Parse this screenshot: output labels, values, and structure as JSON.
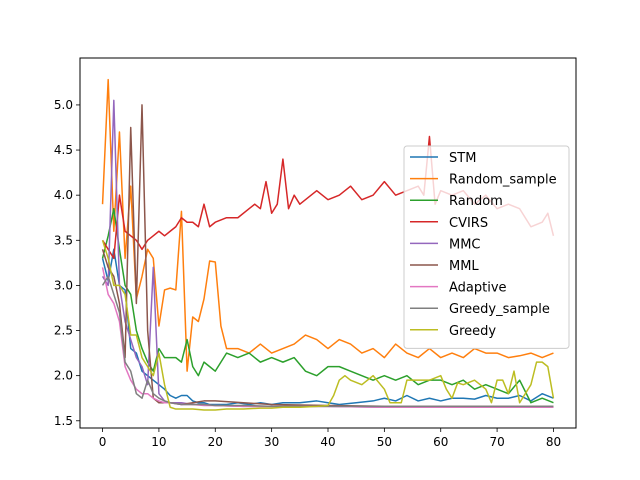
{
  "chart_data": {
    "type": "line",
    "title": "",
    "xlabel": "",
    "ylabel": "",
    "xlim": [
      -4,
      84
    ],
    "ylim": [
      1.42,
      5.52
    ],
    "x_ticks": [
      0,
      10,
      20,
      30,
      40,
      50,
      60,
      70,
      80
    ],
    "y_ticks": [
      1.5,
      2.0,
      2.5,
      3.0,
      3.5,
      4.0,
      4.5,
      5.0
    ],
    "x_tick_labels": [
      "0",
      "10",
      "20",
      "30",
      "40",
      "50",
      "60",
      "70",
      "80"
    ],
    "y_tick_labels": [
      "1.5",
      "2.0",
      "2.5",
      "3.0",
      "3.5",
      "4.0",
      "4.5",
      "5.0"
    ],
    "grid": false,
    "legend_position": "center-right",
    "series": [
      {
        "name": "STM",
        "color": "#1f77b4",
        "x": [
          0,
          1,
          2,
          3,
          4,
          5,
          6,
          7,
          8,
          9,
          10,
          11,
          12,
          13,
          14,
          15,
          16,
          17,
          18,
          19,
          20,
          22,
          24,
          26,
          28,
          30,
          32,
          35,
          38,
          40,
          42,
          45,
          48,
          50,
          52,
          54,
          56,
          58,
          60,
          62,
          64,
          66,
          68,
          70,
          72,
          74,
          76,
          78,
          80
        ],
        "y": [
          3.3,
          3.05,
          3.4,
          3.0,
          2.95,
          2.3,
          2.25,
          2.05,
          2.0,
          1.95,
          1.9,
          1.85,
          1.78,
          1.75,
          1.78,
          1.78,
          1.72,
          1.7,
          1.7,
          1.68,
          1.68,
          1.68,
          1.7,
          1.68,
          1.7,
          1.68,
          1.7,
          1.7,
          1.72,
          1.7,
          1.68,
          1.7,
          1.72,
          1.75,
          1.72,
          1.78,
          1.72,
          1.75,
          1.72,
          1.75,
          1.75,
          1.74,
          1.78,
          1.75,
          1.75,
          1.78,
          1.72,
          1.8,
          1.75
        ]
      },
      {
        "name": "Random_sample",
        "color": "#ff7f0e",
        "x": [
          0,
          1,
          2,
          3,
          4,
          5,
          6,
          7,
          8,
          9,
          10,
          11,
          12,
          13,
          14,
          15,
          16,
          17,
          18,
          19,
          20,
          21,
          22,
          24,
          26,
          28,
          30,
          32,
          34,
          36,
          38,
          40,
          42,
          44,
          46,
          48,
          50,
          52,
          54,
          56,
          58,
          60,
          62,
          64,
          66,
          68,
          70,
          72,
          74,
          76,
          78,
          80
        ],
        "y": [
          3.9,
          5.28,
          3.6,
          4.7,
          3.3,
          4.1,
          2.85,
          3.1,
          3.4,
          3.3,
          2.55,
          2.95,
          2.97,
          2.95,
          3.82,
          2.05,
          2.65,
          2.6,
          2.85,
          3.27,
          3.26,
          2.55,
          2.3,
          2.3,
          2.25,
          2.35,
          2.25,
          2.3,
          2.35,
          2.45,
          2.4,
          2.3,
          2.4,
          2.35,
          2.25,
          2.3,
          2.2,
          2.35,
          2.25,
          2.2,
          2.3,
          2.2,
          2.25,
          2.2,
          2.3,
          2.25,
          2.25,
          2.2,
          2.22,
          2.25,
          2.2,
          2.25
        ]
      },
      {
        "name": "Random",
        "color": "#2ca02c",
        "x": [
          0,
          1,
          2,
          3,
          4,
          5,
          6,
          7,
          8,
          9,
          10,
          11,
          12,
          13,
          14,
          15,
          16,
          17,
          18,
          19,
          20,
          22,
          24,
          26,
          28,
          30,
          32,
          34,
          36,
          38,
          40,
          42,
          44,
          46,
          48,
          50,
          52,
          54,
          56,
          58,
          60,
          62,
          64,
          66,
          68,
          70,
          72,
          74,
          76,
          78,
          80
        ],
        "y": [
          3.3,
          3.55,
          3.85,
          3.4,
          3.0,
          2.9,
          2.5,
          2.3,
          2.15,
          2.05,
          2.3,
          2.2,
          2.2,
          2.2,
          2.15,
          2.4,
          2.1,
          2.0,
          2.15,
          2.1,
          2.05,
          2.25,
          2.2,
          2.25,
          2.15,
          2.2,
          2.15,
          2.2,
          2.05,
          2.0,
          2.1,
          2.1,
          2.05,
          2.0,
          1.95,
          2.0,
          1.95,
          2.0,
          1.9,
          1.95,
          1.95,
          1.9,
          1.95,
          1.85,
          1.9,
          1.85,
          1.8,
          1.95,
          1.7,
          1.75,
          1.7
        ]
      },
      {
        "name": "CVIRS",
        "color": "#d62728",
        "x": [
          0,
          1,
          2,
          3,
          4,
          5,
          6,
          7,
          8,
          9,
          10,
          11,
          12,
          13,
          14,
          15,
          16,
          17,
          18,
          19,
          20,
          22,
          24,
          26,
          27,
          28,
          29,
          30,
          31,
          32,
          33,
          34,
          35,
          36,
          38,
          40,
          42,
          44,
          46,
          48,
          50,
          52,
          54,
          56,
          57,
          58,
          59,
          60,
          62,
          64,
          66,
          68,
          70,
          72,
          74,
          76,
          78,
          79,
          80
        ],
        "y": [
          3.5,
          3.4,
          3.3,
          4.0,
          3.6,
          3.55,
          3.5,
          3.4,
          3.5,
          3.55,
          3.6,
          3.55,
          3.6,
          3.65,
          3.75,
          3.7,
          3.7,
          3.65,
          3.9,
          3.65,
          3.7,
          3.75,
          3.75,
          3.85,
          3.9,
          3.85,
          4.15,
          3.8,
          3.9,
          4.4,
          3.85,
          4.0,
          3.9,
          3.95,
          4.05,
          3.95,
          4.0,
          4.1,
          3.95,
          4.0,
          4.15,
          4.0,
          4.05,
          4.1,
          4.0,
          4.65,
          3.9,
          4.05,
          4.0,
          4.05,
          3.9,
          4.0,
          3.85,
          3.9,
          3.85,
          3.65,
          3.7,
          3.8,
          3.55
        ]
      },
      {
        "name": "MMC",
        "color": "#9467bd",
        "x": [
          0,
          1,
          2,
          3,
          4,
          5,
          6,
          7,
          8,
          9,
          10,
          11,
          12,
          14,
          16,
          18,
          20,
          25,
          30,
          40,
          50,
          60,
          70,
          80
        ],
        "y": [
          3.1,
          3.0,
          5.05,
          3.0,
          2.6,
          2.4,
          2.2,
          2.1,
          1.9,
          3.2,
          1.8,
          1.72,
          1.7,
          1.7,
          1.68,
          1.68,
          1.67,
          1.66,
          1.66,
          1.66,
          1.65,
          1.65,
          1.65,
          1.65
        ]
      },
      {
        "name": "MML",
        "color": "#8c564b",
        "x": [
          0,
          1,
          2,
          3,
          4,
          5,
          6,
          7,
          8,
          9,
          10,
          11,
          12,
          14,
          16,
          18,
          20,
          25,
          30,
          40,
          50,
          60,
          70,
          80
        ],
        "y": [
          3.4,
          3.2,
          3.1,
          2.8,
          2.2,
          4.75,
          2.8,
          5.0,
          2.5,
          1.75,
          1.7,
          1.7,
          1.7,
          1.68,
          1.7,
          1.72,
          1.72,
          1.7,
          1.68,
          1.67,
          1.66,
          1.66,
          1.66,
          1.66
        ]
      },
      {
        "name": "Adaptive",
        "color": "#e377c2",
        "x": [
          0,
          1,
          2,
          3,
          4,
          5,
          6,
          7,
          8,
          9,
          10,
          11,
          12,
          14,
          16,
          18,
          20,
          25,
          30,
          40,
          50,
          60,
          70,
          80
        ],
        "y": [
          3.2,
          2.9,
          2.8,
          2.6,
          2.1,
          1.95,
          1.85,
          1.8,
          1.8,
          1.75,
          1.72,
          1.7,
          1.7,
          1.68,
          1.68,
          1.67,
          1.67,
          1.66,
          1.66,
          1.66,
          1.65,
          1.65,
          1.65,
          1.65
        ]
      },
      {
        "name": "Greedy_sample",
        "color": "#7f7f7f",
        "x": [
          0,
          1,
          2,
          3,
          4,
          5,
          6,
          7,
          8,
          9,
          10,
          11,
          12,
          14,
          16,
          18,
          20,
          25,
          30,
          40,
          50,
          60,
          70,
          80
        ],
        "y": [
          3.0,
          3.1,
          2.9,
          2.7,
          2.15,
          2.05,
          1.8,
          1.75,
          1.95,
          1.8,
          1.75,
          1.72,
          1.7,
          1.68,
          1.68,
          1.68,
          1.67,
          1.67,
          1.66,
          1.66,
          1.66,
          1.66,
          1.66,
          1.66
        ]
      },
      {
        "name": "Greedy",
        "color": "#bcbd22",
        "x": [
          0,
          1,
          2,
          3,
          4,
          5,
          6,
          7,
          8,
          9,
          10,
          11,
          12,
          13,
          14,
          16,
          18,
          20,
          22,
          25,
          28,
          30,
          32,
          35,
          38,
          40,
          41,
          42,
          43,
          44,
          46,
          48,
          50,
          51,
          52,
          53,
          54,
          56,
          58,
          60,
          61,
          62,
          63,
          64,
          66,
          68,
          69,
          70,
          71,
          72,
          73,
          74,
          76,
          77,
          78,
          79,
          80
        ],
        "y": [
          3.5,
          3.3,
          3.0,
          3.0,
          2.9,
          2.45,
          2.45,
          2.2,
          2.1,
          2.0,
          2.25,
          1.9,
          1.65,
          1.63,
          1.63,
          1.63,
          1.62,
          1.62,
          1.63,
          1.63,
          1.64,
          1.64,
          1.65,
          1.65,
          1.66,
          1.67,
          1.78,
          1.95,
          2.0,
          1.95,
          1.9,
          2.0,
          1.85,
          1.7,
          1.7,
          1.7,
          1.95,
          1.95,
          1.95,
          2.0,
          1.85,
          1.75,
          1.92,
          1.9,
          1.95,
          1.85,
          1.7,
          1.95,
          1.95,
          1.8,
          2.05,
          1.7,
          1.9,
          2.15,
          2.15,
          2.1,
          1.75
        ]
      }
    ]
  }
}
